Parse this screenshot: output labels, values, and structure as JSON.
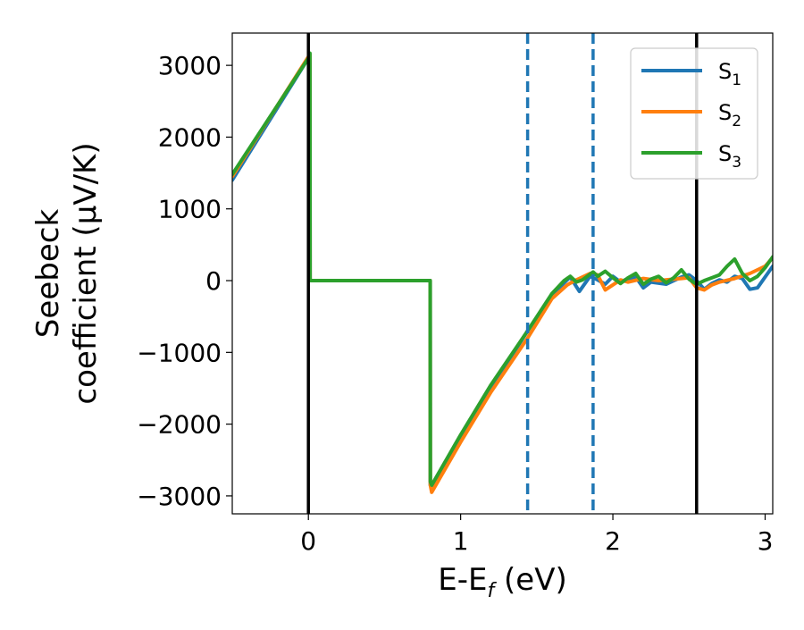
{
  "chart_data": {
    "type": "line",
    "xlabel": "E-E_f (eV)",
    "ylabel_line1": "Seebeck",
    "ylabel_line2": "coefficient  (μV/K)",
    "xlim": [
      -0.5,
      3.05
    ],
    "ylim": [
      -3250,
      3450
    ],
    "xticks": [
      0,
      1,
      2,
      3
    ],
    "yticks": [
      -3000,
      -2000,
      -1000,
      0,
      1000,
      2000,
      3000
    ],
    "xtick_labels": [
      "0",
      "1",
      "2",
      "3"
    ],
    "ytick_labels": [
      "−3000",
      "−2000",
      "−1000",
      "0",
      "1000",
      "2000",
      "3000"
    ],
    "grid": false,
    "legend_position": "top-right",
    "vlines": [
      {
        "x": 0.0,
        "style": "solid",
        "color": "#000000"
      },
      {
        "x": 1.44,
        "style": "dashed",
        "color": "#1f77b4"
      },
      {
        "x": 1.87,
        "style": "dashed",
        "color": "#1f77b4"
      },
      {
        "x": 2.55,
        "style": "solid",
        "color": "#000000"
      }
    ],
    "series": [
      {
        "name": "S1",
        "color": "#1f77b4",
        "x": [
          -0.5,
          0.0,
          0.01,
          0.011,
          0.8,
          0.801,
          0.81,
          1.0,
          1.2,
          1.44,
          1.6,
          1.68,
          1.72,
          1.78,
          1.85,
          1.9,
          1.95,
          2.0,
          2.05,
          2.1,
          2.15,
          2.2,
          2.25,
          2.35,
          2.45,
          2.5,
          2.55,
          2.6,
          2.65,
          2.7,
          2.75,
          2.8,
          2.85,
          2.9,
          2.95,
          3.0,
          3.05
        ],
        "values": [
          1400,
          3100,
          3150,
          0,
          0,
          -2850,
          -2900,
          -2200,
          -1500,
          -700,
          -200,
          -30,
          50,
          -150,
          60,
          10,
          -50,
          60,
          -20,
          30,
          50,
          -100,
          -20,
          -50,
          50,
          80,
          0,
          -120,
          -40,
          10,
          -20,
          60,
          30,
          -120,
          -100,
          50,
          200
        ]
      },
      {
        "name": "S2",
        "color": "#ff7f0e",
        "x": [
          -0.5,
          0.0,
          0.01,
          0.011,
          0.8,
          0.801,
          0.81,
          1.0,
          1.2,
          1.44,
          1.6,
          1.7,
          1.75,
          1.8,
          1.85,
          1.9,
          1.95,
          2.0,
          2.05,
          2.1,
          2.2,
          2.3,
          2.4,
          2.5,
          2.55,
          2.6,
          2.65,
          2.7,
          2.8,
          2.9,
          3.0,
          3.05
        ],
        "values": [
          1450,
          3120,
          3150,
          0,
          0,
          -2850,
          -2950,
          -2250,
          -1550,
          -800,
          -250,
          -60,
          0,
          50,
          100,
          80,
          -130,
          -60,
          10,
          -20,
          30,
          0,
          20,
          40,
          -100,
          -130,
          -60,
          -20,
          30,
          100,
          200,
          320
        ]
      },
      {
        "name": "S3",
        "color": "#2ca02c",
        "x": [
          -0.5,
          0.0,
          0.01,
          0.011,
          0.8,
          0.801,
          0.81,
          1.0,
          1.2,
          1.44,
          1.6,
          1.68,
          1.72,
          1.76,
          1.8,
          1.87,
          1.9,
          1.95,
          2.0,
          2.05,
          2.1,
          2.15,
          2.2,
          2.25,
          2.3,
          2.35,
          2.4,
          2.45,
          2.5,
          2.55,
          2.6,
          2.65,
          2.7,
          2.75,
          2.8,
          2.85,
          2.9,
          2.95,
          3.0,
          3.05
        ],
        "values": [
          1480,
          3100,
          3170,
          0,
          0,
          -2800,
          -2850,
          -2150,
          -1450,
          -700,
          -180,
          0,
          60,
          -20,
          10,
          120,
          60,
          130,
          40,
          -40,
          40,
          100,
          -50,
          20,
          60,
          -30,
          40,
          150,
          20,
          -50,
          0,
          40,
          80,
          200,
          300,
          100,
          0,
          60,
          180,
          330
        ]
      }
    ]
  }
}
